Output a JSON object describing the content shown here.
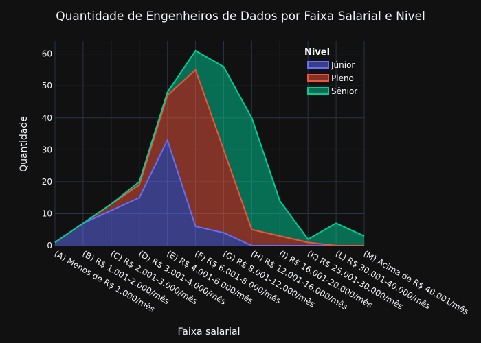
{
  "chart_data": {
    "type": "area",
    "title": "Quantidade de Engenheiros de Dados por Faixa Salarial e Nivel",
    "xlabel": "Faixa salarial",
    "ylabel": "Quantidade",
    "ylim": [
      0,
      64
    ],
    "yticks": [
      0,
      10,
      20,
      30,
      40,
      50,
      60
    ],
    "grid": true,
    "stacked": true,
    "legend_title": "Nivel",
    "legend_position": "top-right",
    "categories": [
      "(A) Menos de R$ 1.000/mês",
      "(B) R$ 1.001-2.000/mês",
      "(C) R$ 2.001-3.000/mês",
      "(D) R$ 3.001-4.000/mês",
      "(E) R$ 4.001-6.000/mês",
      "(F) R$ 6.001-8.000/mês",
      "(G) R$ 8.001-12.000/mês",
      "(H) R$ 12.001-16.000/mês",
      "(I) R$ 16.001-20.000/mês",
      "(K) R$ 25.001-30.000/mês",
      "(L) R$ 30.001-40.000/mês",
      "(M) Acima de R$ 40.001/mês"
    ],
    "series": [
      {
        "name": "Júnior",
        "color": "#636efa",
        "values": [
          1,
          7,
          11,
          15,
          33,
          6,
          4,
          0,
          0,
          0,
          0,
          0
        ]
      },
      {
        "name": "Pleno",
        "color": "#ef553b",
        "values": [
          0,
          0,
          2,
          4,
          14,
          49,
          26,
          5,
          3,
          1,
          0,
          0
        ]
      },
      {
        "name": "Sênior",
        "color": "#00cc96",
        "values": [
          0,
          0,
          0,
          1,
          1,
          6,
          26,
          35,
          11,
          1,
          7,
          3
        ]
      }
    ]
  }
}
